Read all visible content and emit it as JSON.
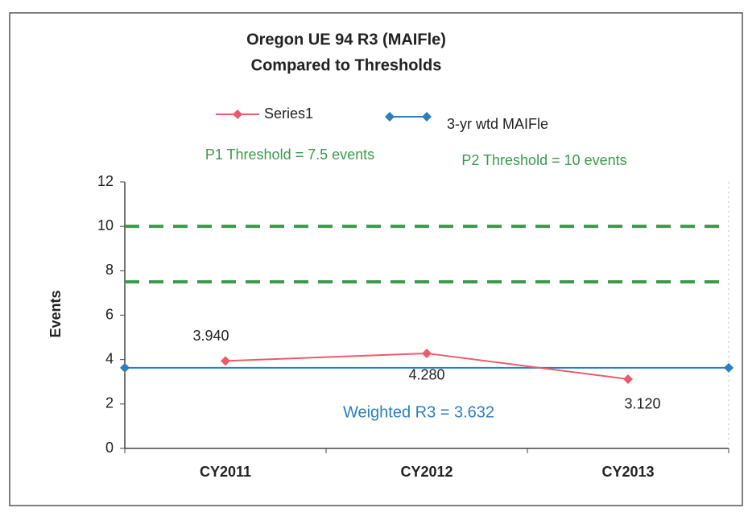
{
  "chart_data": {
    "type": "line",
    "title": "Oregon UE 94 R3 (MAIFle)",
    "subtitle": "Compared to Thresholds",
    "y_label": "Events",
    "categories": [
      "CY2011",
      "CY2012",
      "CY2013"
    ],
    "series": [
      {
        "name": "Series1",
        "color": "#ee5a6a",
        "values": [
          3.94,
          4.28,
          3.12
        ],
        "value_labels": [
          "3.940",
          "4.280",
          "3.120"
        ]
      }
    ],
    "reference_line": {
      "name": "3-yr wtd MAIFle",
      "color": "#2a7fbf",
      "value": 3.632,
      "label": "Weighted R3 = 3.632"
    },
    "thresholds": [
      {
        "label": "P1 Threshold = 7.5 events",
        "value": 7.5,
        "color": "#3a9a4a"
      },
      {
        "label": "P2 Threshold = 10 events",
        "value": 10,
        "color": "#3a9a4a"
      }
    ],
    "ylim": [
      0,
      12
    ],
    "yticks": [
      0,
      2,
      4,
      6,
      8,
      10,
      12
    ]
  }
}
